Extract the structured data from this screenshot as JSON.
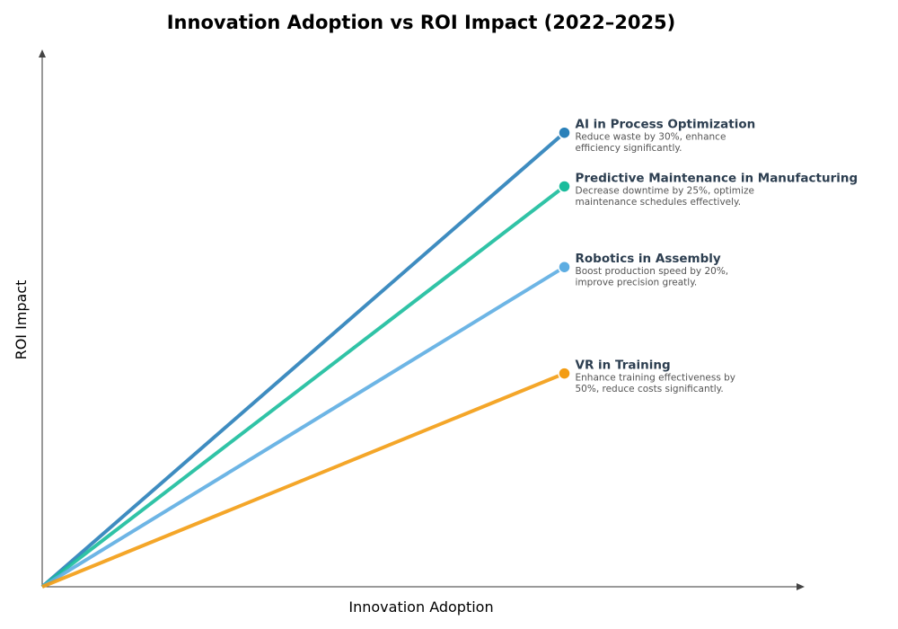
{
  "chart_data": {
    "type": "line",
    "title": "Innovation Adoption vs ROI Impact (2022–2025)",
    "xlabel": "Innovation Adoption",
    "ylabel": "ROI Impact",
    "xlim": [
      0,
      1.46
    ],
    "ylim": [
      0,
      1.0
    ],
    "grid": false,
    "ticks": false,
    "series": [
      {
        "name": "AI in Process Optimization",
        "description": [
          "Reduce waste by 30%, enhance",
          "efficiency significantly."
        ],
        "color": "#2980b9",
        "x": [
          0,
          1
        ],
        "y": [
          0,
          0.845
        ]
      },
      {
        "name": "Predictive Maintenance in Manufacturing",
        "description": [
          "Decrease downtime by 25%, optimize",
          "maintenance schedules effectively."
        ],
        "color": "#1abc9c",
        "x": [
          0,
          1
        ],
        "y": [
          0,
          0.745
        ]
      },
      {
        "name": "Robotics in Assembly",
        "description": [
          "Boost production speed by 20%,",
          "improve precision greatly."
        ],
        "color": "#5dade2",
        "x": [
          0,
          1
        ],
        "y": [
          0,
          0.595
        ]
      },
      {
        "name": "VR in Training",
        "description": [
          "Enhance training effectiveness by",
          "50%, reduce costs significantly."
        ],
        "color": "#f39c12",
        "x": [
          0,
          1
        ],
        "y": [
          0,
          0.397
        ]
      }
    ]
  }
}
